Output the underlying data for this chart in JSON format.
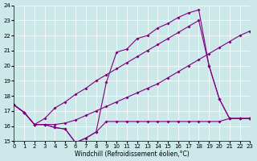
{
  "background_color": "#cce8e8",
  "line_color": "#800080",
  "xlabel": "Windchill (Refroidissement éolien,°C)",
  "xlim": [
    0,
    23
  ],
  "ylim": [
    15,
    24
  ],
  "xticks": [
    0,
    1,
    2,
    3,
    4,
    5,
    6,
    7,
    8,
    9,
    10,
    11,
    12,
    13,
    14,
    15,
    16,
    17,
    18,
    19,
    20,
    21,
    22,
    23
  ],
  "yticks": [
    15,
    16,
    17,
    18,
    19,
    20,
    21,
    22,
    23,
    24
  ],
  "series": [
    {
      "x": [
        0,
        1,
        2,
        3,
        4,
        5,
        6,
        7,
        8,
        9,
        10,
        11,
        12,
        13,
        14,
        15,
        16,
        17,
        18,
        19,
        20,
        21,
        22,
        23
      ],
      "y": [
        17.4,
        16.9,
        16.1,
        16.1,
        15.9,
        15.8,
        14.9,
        15.2,
        15.6,
        16.3,
        16.3,
        16.3,
        16.3,
        16.3,
        16.3,
        16.3,
        16.3,
        16.3,
        16.3,
        16.3,
        16.3,
        16.5,
        16.5,
        16.5
      ]
    },
    {
      "x": [
        0,
        1,
        2,
        3,
        4,
        5,
        6,
        7,
        8,
        9,
        10,
        11,
        12,
        13,
        14,
        15,
        16,
        17,
        18,
        19,
        20,
        21,
        22,
        23
      ],
      "y": [
        17.4,
        16.9,
        16.1,
        16.1,
        15.9,
        15.8,
        14.9,
        15.2,
        15.6,
        18.9,
        20.9,
        21.1,
        21.8,
        22.0,
        22.5,
        22.8,
        23.2,
        23.5,
        23.7,
        20.0,
        17.8,
        16.5,
        16.5,
        16.5
      ]
    },
    {
      "x": [
        0,
        1,
        2,
        3,
        4,
        5,
        6,
        7,
        8,
        9,
        10,
        11,
        12,
        13,
        14,
        15,
        16,
        17,
        18,
        19,
        20,
        21,
        22,
        23
      ],
      "y": [
        17.4,
        16.9,
        16.1,
        16.5,
        17.2,
        17.6,
        18.1,
        18.5,
        19.0,
        19.4,
        19.8,
        20.2,
        20.6,
        21.0,
        21.4,
        21.8,
        22.2,
        22.6,
        23.0,
        20.0,
        17.8,
        16.5,
        16.5,
        16.5
      ]
    },
    {
      "x": [
        0,
        1,
        2,
        3,
        4,
        5,
        6,
        7,
        8,
        9,
        10,
        11,
        12,
        13,
        14,
        15,
        16,
        17,
        18,
        19,
        20,
        21,
        22,
        23
      ],
      "y": [
        17.4,
        16.9,
        16.1,
        16.1,
        16.1,
        16.2,
        16.4,
        16.7,
        17.0,
        17.3,
        17.6,
        17.9,
        18.2,
        18.5,
        18.8,
        19.2,
        19.6,
        20.0,
        20.4,
        20.8,
        21.2,
        21.6,
        22.0,
        22.3
      ]
    }
  ]
}
